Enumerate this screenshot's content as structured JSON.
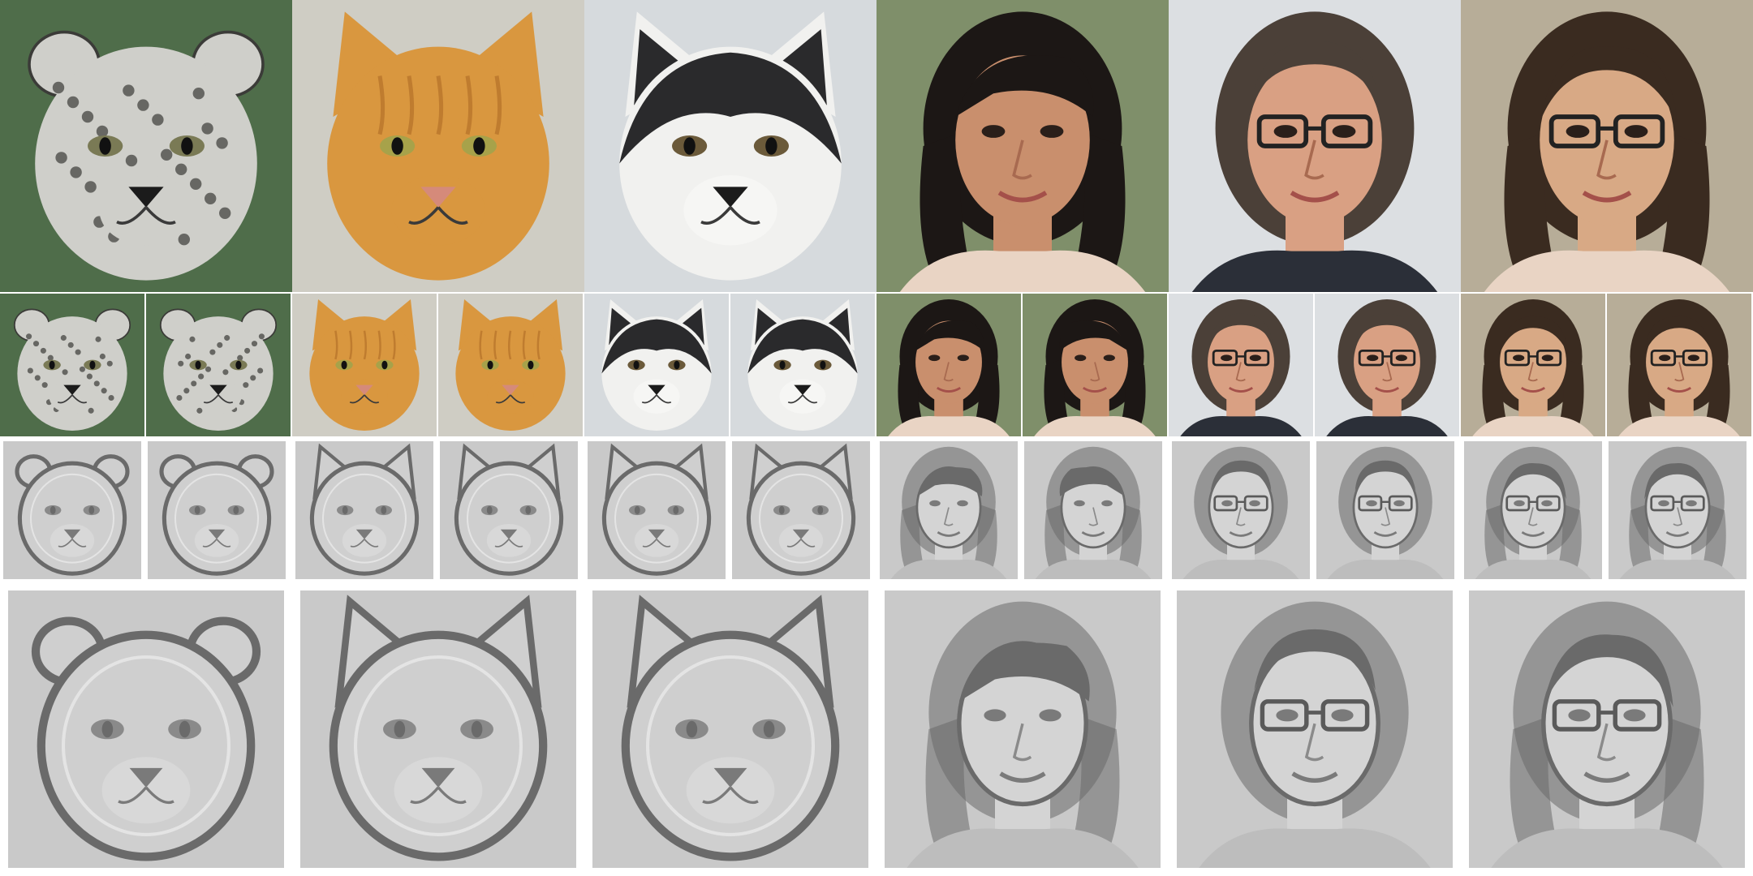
{
  "figure": {
    "subjects": [
      {
        "id": "snow-leopard",
        "kind": "animal",
        "bg": "#4f6d4a",
        "fur": "#cfcfca",
        "accent": "#3b3b38",
        "eye": "#7a7a55"
      },
      {
        "id": "orange-cat",
        "kind": "cat",
        "bg": "#cfcdc4",
        "fur": "#d9973f",
        "accent": "#b4702a",
        "eye": "#a7a24a"
      },
      {
        "id": "husky",
        "kind": "dog",
        "bg": "#d6dadd",
        "fur": "#f1f1ef",
        "accent": "#2a2a2c",
        "eye": "#6b5a3a"
      },
      {
        "id": "woman-short-hair",
        "kind": "human",
        "bg": "#7f8f6a",
        "skin": "#c98f6d",
        "hair": "#1c1715",
        "glasses": false
      },
      {
        "id": "man-glasses",
        "kind": "human",
        "bg": "#dcdfe2",
        "skin": "#d9a083",
        "hair": "#4b4038",
        "glasses": true
      },
      {
        "id": "woman-glasses",
        "kind": "human",
        "bg": "#b7ad98",
        "skin": "#d8a985",
        "hair": "#3a2b20",
        "glasses": true
      }
    ],
    "rows": [
      "input-images",
      "rendered-views",
      "shading-views",
      "shading-closeups"
    ],
    "palette": {
      "shading_bg": "#c9c9c9",
      "shading_dark": "#6a6a6a",
      "shading_light": "#e8e8e8"
    }
  }
}
